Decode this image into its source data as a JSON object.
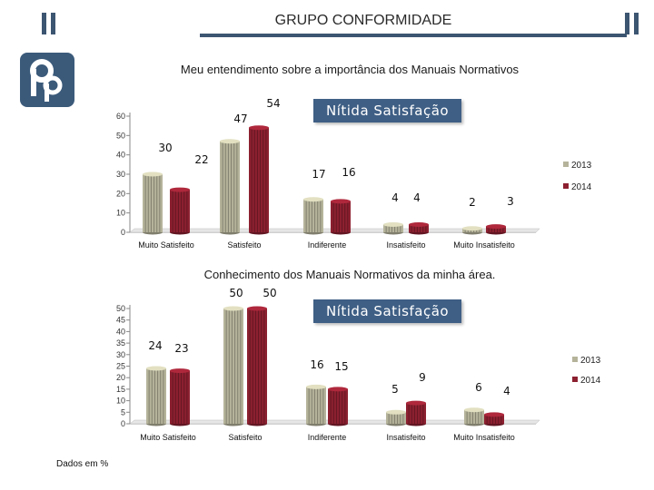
{
  "header": {
    "title": "GRUPO CONFORMIDADE"
  },
  "logo": {
    "icon": "company-logo-icon",
    "color": "#3b5a7a"
  },
  "colors": {
    "s2013": "#b5b39a",
    "s2014": "#8c2030",
    "banner": "#3f5f85",
    "accent": "#3c5571"
  },
  "footer": {
    "note": "Dados em %"
  },
  "chart_data": [
    {
      "type": "bar",
      "title": "Meu entendimento sobre a importância dos Manuais Normativos",
      "badge": "Nítida Satisfação",
      "categories": [
        "Muito Satisfeito",
        "Satisfeito",
        "Indiferente",
        "Insatisfeito",
        "Muito Insatisfeito"
      ],
      "series": [
        {
          "name": "2013",
          "values": [
            30,
            47,
            17,
            4,
            2
          ]
        },
        {
          "name": "2014",
          "values": [
            22,
            54,
            16,
            4,
            3
          ]
        }
      ],
      "ylim": [
        0,
        60
      ],
      "yticks": [
        0,
        10,
        20,
        30,
        40,
        50,
        60
      ],
      "legend": "right",
      "grid": false
    },
    {
      "type": "bar",
      "title": "Conhecimento dos Manuais Normativos da minha área.",
      "badge": "Nítida Satisfação",
      "categories": [
        "Muito Satisfeito",
        "Satisfeito",
        "Indiferente",
        "Insatisfeito",
        "Muito Insatisfeito"
      ],
      "series": [
        {
          "name": "2013",
          "values": [
            24,
            50,
            16,
            5,
            6
          ]
        },
        {
          "name": "2014",
          "values": [
            23,
            50,
            15,
            9,
            4
          ]
        }
      ],
      "ylim": [
        0,
        50
      ],
      "yticks": [
        0,
        5,
        10,
        15,
        20,
        25,
        30,
        35,
        40,
        45,
        50
      ],
      "legend": "right",
      "grid": false
    }
  ]
}
